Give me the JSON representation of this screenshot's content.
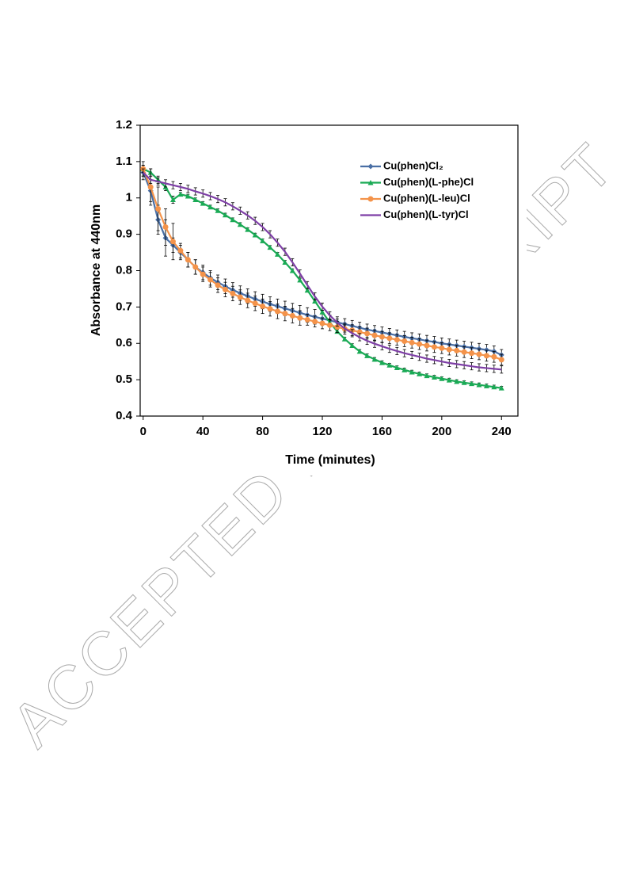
{
  "watermark": "ACCEPTED MANUSCRIPT",
  "chart_data": {
    "type": "line",
    "xlabel": "Time (minutes)",
    "ylabel": "Absorbance at 440nm",
    "x": [
      0,
      5,
      10,
      15,
      20,
      25,
      30,
      35,
      40,
      45,
      50,
      55,
      60,
      65,
      70,
      75,
      80,
      85,
      90,
      95,
      100,
      105,
      110,
      115,
      120,
      125,
      130,
      135,
      140,
      145,
      150,
      155,
      160,
      165,
      170,
      175,
      180,
      185,
      190,
      195,
      200,
      205,
      210,
      215,
      220,
      225,
      230,
      235,
      240
    ],
    "xlim": [
      -2,
      251
    ],
    "xticks": [
      0,
      40,
      80,
      120,
      160,
      200,
      240
    ],
    "ylim": [
      0.4,
      1.2
    ],
    "yticks": [
      0.4,
      0.5,
      0.6,
      0.7,
      0.8,
      0.9,
      1,
      1.1,
      1.2
    ],
    "legend": "upper right",
    "series": [
      {
        "name": "Cu(phen)Cl₂",
        "color": "#4a6fa5",
        "marker": "diamond",
        "values": [
          1.07,
          1.02,
          0.94,
          0.89,
          0.87,
          0.85,
          0.83,
          0.81,
          0.795,
          0.78,
          0.768,
          0.757,
          0.747,
          0.738,
          0.73,
          0.722,
          0.715,
          0.708,
          0.702,
          0.696,
          0.69,
          0.684,
          0.678,
          0.673,
          0.668,
          0.663,
          0.658,
          0.653,
          0.648,
          0.643,
          0.638,
          0.634,
          0.63,
          0.626,
          0.622,
          0.618,
          0.614,
          0.611,
          0.607,
          0.604,
          0.6,
          0.597,
          0.594,
          0.591,
          0.588,
          0.585,
          0.582,
          0.578,
          0.568
        ],
        "errors": [
          0.02,
          0.03,
          0.04,
          0.05,
          0.02,
          0.02,
          0.02,
          0.02,
          0.02,
          0.02,
          0.02,
          0.02,
          0.02,
          0.02,
          0.02,
          0.02,
          0.02,
          0.02,
          0.02,
          0.02,
          0.02,
          0.02,
          0.02,
          0.02,
          0.015,
          0.015,
          0.015,
          0.015,
          0.015,
          0.015,
          0.015,
          0.015,
          0.015,
          0.015,
          0.015,
          0.015,
          0.015,
          0.015,
          0.015,
          0.015,
          0.015,
          0.015,
          0.015,
          0.015,
          0.015,
          0.015,
          0.015,
          0.015,
          0.015
        ]
      },
      {
        "name": "Cu(phen)(L-phe)Cl",
        "color": "#1aaa55",
        "marker": "triangle",
        "values": [
          1.08,
          1.07,
          1.05,
          1.03,
          0.995,
          1.01,
          1.005,
          0.995,
          0.985,
          0.975,
          0.965,
          0.953,
          0.94,
          0.927,
          0.913,
          0.898,
          0.882,
          0.864,
          0.845,
          0.823,
          0.8,
          0.774,
          0.746,
          0.716,
          0.686,
          0.658,
          0.633,
          0.612,
          0.594,
          0.578,
          0.566,
          0.556,
          0.547,
          0.54,
          0.533,
          0.527,
          0.521,
          0.516,
          0.511,
          0.507,
          0.503,
          0.499,
          0.495,
          0.492,
          0.489,
          0.486,
          0.483,
          0.48,
          0.477
        ],
        "errors": [
          0.01,
          0.01,
          0.01,
          0.01,
          0.01,
          0.005,
          0.005,
          0.005,
          0.005,
          0.005,
          0.005,
          0.005,
          0.005,
          0.005,
          0.005,
          0.005,
          0.005,
          0.005,
          0.005,
          0.005,
          0.005,
          0.005,
          0.005,
          0.005,
          0.005,
          0.005,
          0.005,
          0.005,
          0.005,
          0.005,
          0.005,
          0.005,
          0.005,
          0.005,
          0.005,
          0.005,
          0.005,
          0.005,
          0.005,
          0.005,
          0.005,
          0.005,
          0.005,
          0.005,
          0.005,
          0.005,
          0.005,
          0.005,
          0.005
        ]
      },
      {
        "name": "Cu(phen)(L-leu)Cl",
        "color": "#f4934a",
        "marker": "circle",
        "values": [
          1.08,
          1.03,
          0.97,
          0.92,
          0.88,
          0.855,
          0.83,
          0.81,
          0.79,
          0.775,
          0.76,
          0.748,
          0.737,
          0.727,
          0.718,
          0.71,
          0.702,
          0.695,
          0.688,
          0.682,
          0.676,
          0.67,
          0.665,
          0.66,
          0.655,
          0.65,
          0.645,
          0.64,
          0.636,
          0.631,
          0.627,
          0.622,
          0.618,
          0.614,
          0.61,
          0.606,
          0.602,
          0.598,
          0.594,
          0.59,
          0.587,
          0.583,
          0.58,
          0.576,
          0.573,
          0.57,
          0.566,
          0.563,
          0.555
        ],
        "errors": [
          0.02,
          0.05,
          0.06,
          0.05,
          0.05,
          0.02,
          0.02,
          0.02,
          0.02,
          0.02,
          0.02,
          0.02,
          0.02,
          0.02,
          0.02,
          0.02,
          0.02,
          0.02,
          0.02,
          0.02,
          0.02,
          0.02,
          0.015,
          0.015,
          0.015,
          0.015,
          0.015,
          0.015,
          0.015,
          0.015,
          0.015,
          0.015,
          0.015,
          0.015,
          0.015,
          0.015,
          0.015,
          0.015,
          0.015,
          0.015,
          0.015,
          0.015,
          0.015,
          0.015,
          0.015,
          0.015,
          0.015,
          0.015,
          0.015
        ]
      },
      {
        "name": "Cu(phen)(L-tyr)Cl",
        "color": "#7e3fa6",
        "marker": "none",
        "values": [
          1.07,
          1.05,
          1.045,
          1.04,
          1.035,
          1.03,
          1.025,
          1.018,
          1.012,
          1.005,
          0.997,
          0.988,
          0.977,
          0.965,
          0.952,
          0.937,
          0.92,
          0.9,
          0.877,
          0.852,
          0.823,
          0.792,
          0.76,
          0.729,
          0.701,
          0.677,
          0.657,
          0.641,
          0.628,
          0.617,
          0.607,
          0.599,
          0.592,
          0.585,
          0.579,
          0.573,
          0.568,
          0.563,
          0.558,
          0.554,
          0.55,
          0.546,
          0.543,
          0.54,
          0.537,
          0.534,
          0.532,
          0.53,
          0.528
        ],
        "errors": [
          0.01,
          0.01,
          0.01,
          0.01,
          0.01,
          0.01,
          0.01,
          0.01,
          0.01,
          0.01,
          0.01,
          0.01,
          0.01,
          0.01,
          0.01,
          0.01,
          0.01,
          0.01,
          0.01,
          0.01,
          0.01,
          0.01,
          0.01,
          0.01,
          0.01,
          0.01,
          0.01,
          0.01,
          0.01,
          0.01,
          0.01,
          0.01,
          0.01,
          0.01,
          0.01,
          0.01,
          0.01,
          0.01,
          0.01,
          0.01,
          0.01,
          0.01,
          0.01,
          0.01,
          0.01,
          0.01,
          0.01,
          0.01,
          0.01
        ]
      }
    ]
  }
}
